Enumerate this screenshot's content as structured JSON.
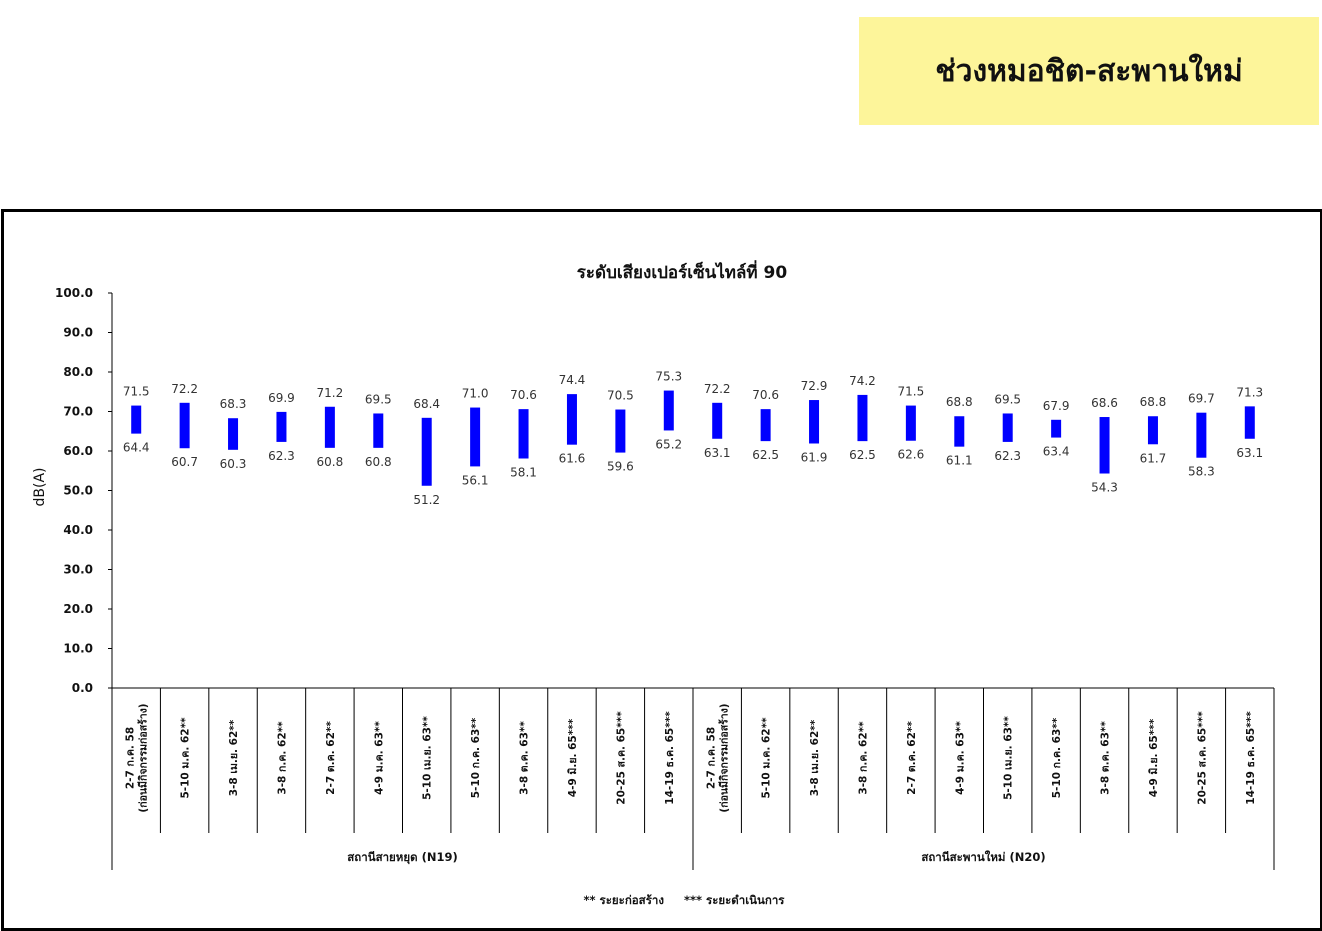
{
  "banner": {
    "title": "ช่วงหมอชิต-สะพานใหม่"
  },
  "chart_data": {
    "type": "bar",
    "subtype": "floating-range",
    "title": "ระดับเสียงเปอร์เซ็นไทล์ที่ 90",
    "ylabel": "dB(A)",
    "xlabel": "",
    "ylim": [
      0,
      100
    ],
    "yticks": [
      "0.0",
      "10.0",
      "20.0",
      "30.0",
      "40.0",
      "50.0",
      "60.0",
      "70.0",
      "80.0",
      "90.0",
      "100.0"
    ],
    "grid": false,
    "bar_color": "#0000ff",
    "groups": [
      {
        "name": "สถานีสายหยุด (N19)",
        "categories": [
          [
            "2-7 ก.ค. 58",
            "(ก่อนมีกิจกรรมก่อสร้าง)"
          ],
          [
            "5-10 ม.ค. 62**"
          ],
          [
            "3-8 เม.ย. 62**"
          ],
          [
            "3-8 ก.ค. 62**"
          ],
          [
            "2-7 ต.ค. 62**"
          ],
          [
            "4-9 ม.ค. 63**"
          ],
          [
            "5-10 เม.ย. 63**"
          ],
          [
            "5-10 ก.ค. 63**"
          ],
          [
            "3-8 ต.ค. 63**"
          ],
          [
            "4-9 มิ.ย. 65***"
          ],
          [
            "20-25 ส.ค. 65***"
          ],
          [
            "14-19 ธ.ค. 65***"
          ]
        ],
        "high": [
          71.5,
          72.2,
          68.3,
          69.9,
          71.2,
          69.5,
          68.4,
          71.0,
          70.6,
          74.4,
          70.5,
          75.3
        ],
        "low": [
          64.4,
          60.7,
          60.3,
          62.3,
          60.8,
          60.8,
          51.2,
          56.1,
          58.1,
          61.6,
          59.6,
          65.2
        ]
      },
      {
        "name": "สถานีสะพานใหม่ (N20)",
        "categories": [
          [
            "2-7 ก.ค. 58",
            "(ก่อนมีกิจกรรมก่อสร้าง)"
          ],
          [
            "5-10 ม.ค. 62**"
          ],
          [
            "3-8 เม.ย. 62**"
          ],
          [
            "3-8 ก.ค. 62**"
          ],
          [
            "2-7 ต.ค. 62**"
          ],
          [
            "4-9 ม.ค. 63**"
          ],
          [
            "5-10 เม.ย. 63**"
          ],
          [
            "5-10 ก.ค. 63**"
          ],
          [
            "3-8 ต.ค. 63**"
          ],
          [
            "4-9 มิ.ย. 65***"
          ],
          [
            "20-25 ส.ค. 65***"
          ],
          [
            "14-19 ธ.ค. 65***"
          ]
        ],
        "high": [
          72.2,
          70.6,
          72.9,
          74.2,
          71.5,
          68.8,
          69.5,
          67.9,
          68.6,
          68.8,
          69.7,
          71.3
        ],
        "low": [
          63.1,
          62.5,
          61.9,
          62.5,
          62.6,
          61.1,
          62.3,
          63.4,
          54.3,
          61.7,
          58.3,
          63.1
        ]
      }
    ],
    "footnote": "** ระยะก่อสร้าง     *** ระยะดำเนินการ"
  }
}
